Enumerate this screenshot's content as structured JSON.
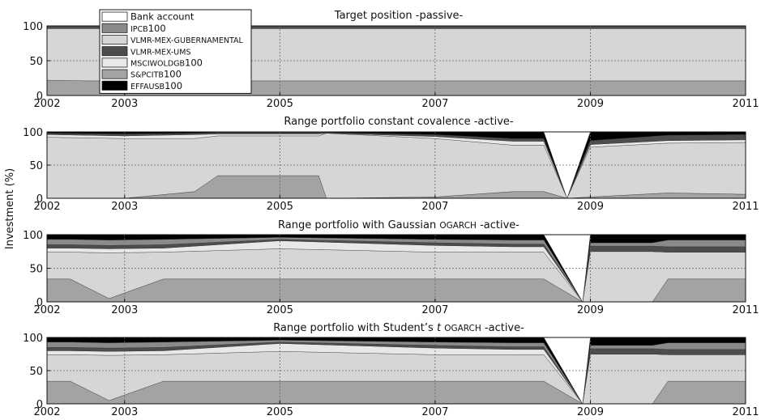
{
  "figure": {
    "ylabel": "Investment (%)",
    "legend": {
      "placement": "top-left",
      "items": [
        {
          "label": "Bank account",
          "color": "#ffffff"
        },
        {
          "label": "IPCB100",
          "color": "#8a8a8a"
        },
        {
          "label": "VLMR-MEX-GUBERNAMENTAL",
          "color": "#d6d6d6"
        },
        {
          "label": "VLMR-MEX-UMS",
          "color": "#4d4d4d"
        },
        {
          "label": "MSCIWOLDGB100",
          "color": "#e8e8e8"
        },
        {
          "label": "S&PCITB100",
          "color": "#a3a3a3"
        },
        {
          "label": "EFFAUSB100",
          "color": "#000000"
        }
      ]
    }
  },
  "chart_data": [
    {
      "type": "area",
      "stacked": true,
      "title": "Target position -passive-",
      "xlim": [
        2002,
        2011
      ],
      "ylim": [
        0,
        100
      ],
      "xticks": [
        "2002",
        "2003",
        "2005",
        "2007",
        "2009",
        "2011"
      ],
      "yticks": [
        "0",
        "50",
        "100"
      ],
      "grid": true,
      "x": [
        2002.0,
        2002.5,
        2003.0,
        2004.0,
        2005.0,
        2006.0,
        2007.0,
        2008.0,
        2009.0,
        2010.0,
        2011.0
      ],
      "series": [
        {
          "name": "S&PCITB100",
          "values": [
            22,
            21,
            21,
            21,
            21,
            21,
            21,
            21,
            21,
            21,
            21
          ]
        },
        {
          "name": "VLMR-MEX-GUBERNAMENTAL",
          "values": [
            74,
            75,
            75,
            75,
            75,
            75,
            75,
            75,
            75,
            75,
            75
          ]
        },
        {
          "name": "VLMR-MEX-UMS",
          "values": [
            4,
            4,
            4,
            4,
            4,
            4,
            4,
            4,
            4,
            4,
            4
          ]
        }
      ]
    },
    {
      "type": "area",
      "stacked": true,
      "title": "Range portfolio constant covalence -active-",
      "xlim": [
        2002,
        2011
      ],
      "ylim": [
        0,
        100
      ],
      "xticks": [
        "2002",
        "2003",
        "2005",
        "2007",
        "2009",
        "2011"
      ],
      "yticks": [
        "0",
        "50",
        "100"
      ],
      "grid": true,
      "x": [
        2002.0,
        2003.0,
        2003.9,
        2004.2,
        2005.0,
        2005.5,
        2005.6,
        2007.0,
        2008.0,
        2008.4,
        2008.7,
        2009.0,
        2010.0,
        2011.0
      ],
      "series": [
        {
          "name": "S&PCITB100",
          "values": [
            0,
            0,
            10,
            34,
            34,
            34,
            0,
            2,
            10,
            10,
            0,
            2,
            8,
            6
          ]
        },
        {
          "name": "VLMR-MEX-GUBERNAMENTAL",
          "values": [
            92,
            90,
            80,
            60,
            60,
            60,
            98,
            88,
            70,
            70,
            0,
            75,
            75,
            78
          ]
        },
        {
          "name": "MSCIWOLDGB100",
          "values": [
            4,
            4,
            6,
            3,
            3,
            3,
            0,
            3,
            6,
            6,
            0,
            4,
            4,
            4
          ]
        },
        {
          "name": "VLMR-MEX-UMS",
          "values": [
            2,
            3,
            2,
            2,
            2,
            2,
            1,
            3,
            4,
            4,
            0,
            6,
            8,
            8
          ]
        },
        {
          "name": "EFFAUSB100",
          "values": [
            2,
            3,
            2,
            1,
            1,
            1,
            1,
            4,
            10,
            10,
            0,
            13,
            5,
            4
          ]
        },
        {
          "name": "Bank account",
          "values": [
            0,
            0,
            0,
            0,
            0,
            0,
            0,
            0,
            0,
            0,
            100,
            0,
            0,
            0
          ]
        }
      ]
    },
    {
      "type": "area",
      "stacked": true,
      "title": "Range portfolio with Gaussian OGARCH -active-",
      "xlim": [
        2002,
        2011
      ],
      "ylim": [
        0,
        100
      ],
      "xticks": [
        "2002",
        "2003",
        "2005",
        "2007",
        "2009",
        "2011"
      ],
      "yticks": [
        "0",
        "50",
        "100"
      ],
      "grid": true,
      "x": [
        2002.0,
        2002.3,
        2002.8,
        2003.5,
        2005.0,
        2007.0,
        2008.0,
        2008.4,
        2008.9,
        2009.0,
        2009.8,
        2010.0,
        2011.0
      ],
      "series": [
        {
          "name": "S&PCITB100",
          "values": [
            34,
            34,
            5,
            34,
            34,
            34,
            34,
            34,
            0,
            0,
            0,
            34,
            34
          ]
        },
        {
          "name": "VLMR-MEX-GUBERNAMENTAL",
          "values": [
            40,
            40,
            68,
            40,
            45,
            40,
            40,
            40,
            0,
            75,
            75,
            40,
            40
          ]
        },
        {
          "name": "MSCIWOLDGB100",
          "values": [
            6,
            6,
            6,
            6,
            12,
            10,
            8,
            8,
            0,
            0,
            0,
            0,
            0
          ]
        },
        {
          "name": "VLMR-MEX-UMS",
          "values": [
            5,
            5,
            5,
            5,
            2,
            4,
            4,
            4,
            0,
            8,
            8,
            8,
            8
          ]
        },
        {
          "name": "IPCB100",
          "values": [
            8,
            8,
            8,
            8,
            3,
            5,
            6,
            6,
            0,
            5,
            5,
            10,
            10
          ]
        },
        {
          "name": "EFFAUSB100",
          "values": [
            7,
            7,
            8,
            7,
            4,
            7,
            8,
            8,
            0,
            12,
            12,
            8,
            8
          ]
        },
        {
          "name": "Bank account",
          "values": [
            0,
            0,
            0,
            0,
            0,
            0,
            0,
            0,
            100,
            0,
            0,
            0,
            0
          ]
        }
      ]
    },
    {
      "type": "area",
      "stacked": true,
      "title": "Range portfolio with Student’s t OGARCH -active-",
      "xlim": [
        2002,
        2011
      ],
      "ylim": [
        0,
        100
      ],
      "xticks": [
        "2002",
        "2003",
        "2005",
        "2007",
        "2009",
        "2011"
      ],
      "yticks": [
        "0",
        "50",
        "100"
      ],
      "grid": true,
      "x": [
        2002.0,
        2002.3,
        2002.8,
        2003.5,
        2005.0,
        2007.0,
        2008.0,
        2008.4,
        2008.9,
        2009.0,
        2009.8,
        2010.0,
        2011.0
      ],
      "series": [
        {
          "name": "S&PCITB100",
          "values": [
            34,
            34,
            5,
            34,
            34,
            34,
            34,
            34,
            0,
            0,
            0,
            34,
            34
          ]
        },
        {
          "name": "VLMR-MEX-GUBERNAMENTAL",
          "values": [
            40,
            40,
            68,
            40,
            45,
            40,
            40,
            40,
            0,
            75,
            75,
            40,
            40
          ]
        },
        {
          "name": "MSCIWOLDGB100",
          "values": [
            6,
            6,
            6,
            6,
            12,
            10,
            8,
            8,
            0,
            0,
            0,
            0,
            0
          ]
        },
        {
          "name": "VLMR-MEX-UMS",
          "values": [
            5,
            5,
            5,
            5,
            2,
            4,
            4,
            4,
            0,
            8,
            8,
            8,
            8
          ]
        },
        {
          "name": "IPCB100",
          "values": [
            8,
            8,
            8,
            8,
            3,
            5,
            6,
            6,
            0,
            5,
            5,
            10,
            10
          ]
        },
        {
          "name": "EFFAUSB100",
          "values": [
            7,
            7,
            8,
            7,
            4,
            7,
            8,
            8,
            0,
            12,
            12,
            8,
            8
          ]
        },
        {
          "name": "Bank account",
          "values": [
            0,
            0,
            0,
            0,
            0,
            0,
            0,
            0,
            100,
            0,
            0,
            0,
            0
          ]
        }
      ]
    }
  ]
}
